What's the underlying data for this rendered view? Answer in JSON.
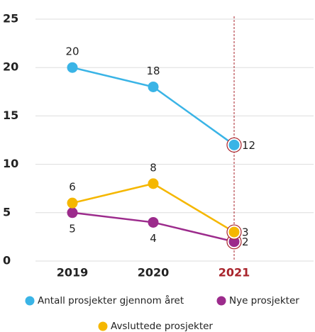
{
  "chart_data": {
    "type": "line",
    "categories": [
      "2019",
      "2020",
      "2021"
    ],
    "series": [
      {
        "name": "Antall prosjekter gjennom året",
        "color": "#3ab4e6",
        "values": [
          20,
          18,
          12
        ]
      },
      {
        "name": "Nye prosjekter",
        "color": "#9c2b8c",
        "values": [
          5,
          4,
          2
        ]
      },
      {
        "name": "Avsluttede prosjekter",
        "color": "#f5b700",
        "values": [
          6,
          8,
          3
        ]
      }
    ],
    "ylim": [
      0,
      25
    ],
    "yticks": [
      0,
      5,
      10,
      15,
      20,
      25
    ],
    "grid": true
  }
}
